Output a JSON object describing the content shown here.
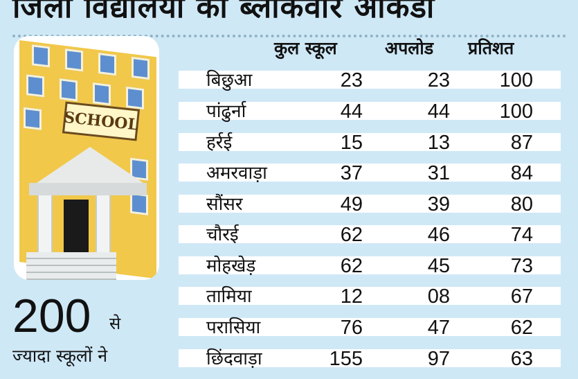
{
  "title": "जिला विद्यालयों का ब्लॉकवार आंकड़ा",
  "illustration": {
    "sign_text": "SCHOOL",
    "icon": "school-building-illustration"
  },
  "highlight": {
    "number": "200",
    "suffix": "से",
    "caption": "ज्यादा स्कूलों ने"
  },
  "table": {
    "headers": [
      "कुल स्कूल",
      "अपलोड",
      "प्रतिशत"
    ],
    "rows": [
      {
        "name": "बिछुआ",
        "total": "23",
        "uploaded": "23",
        "percent": "100"
      },
      {
        "name": "पांढुर्ना",
        "total": "44",
        "uploaded": "44",
        "percent": "100"
      },
      {
        "name": "हर्रई",
        "total": "15",
        "uploaded": "13",
        "percent": "87"
      },
      {
        "name": "अमरवाड़ा",
        "total": "37",
        "uploaded": "31",
        "percent": "84"
      },
      {
        "name": "सौंसर",
        "total": "49",
        "uploaded": "39",
        "percent": "80"
      },
      {
        "name": "चौरई",
        "total": "62",
        "uploaded": "46",
        "percent": "74"
      },
      {
        "name": "मोहखेड़",
        "total": "62",
        "uploaded": "45",
        "percent": "73"
      },
      {
        "name": "तामिया",
        "total": "12",
        "uploaded": "08",
        "percent": "67"
      },
      {
        "name": "परासिया",
        "total": "76",
        "uploaded": "47",
        "percent": "62"
      },
      {
        "name": "छिंदवाड़ा",
        "total": "155",
        "uploaded": "97",
        "percent": "63"
      }
    ]
  },
  "colors": {
    "background": "#cfe8f6",
    "row_shade": "#ffffff",
    "text": "#111111"
  }
}
